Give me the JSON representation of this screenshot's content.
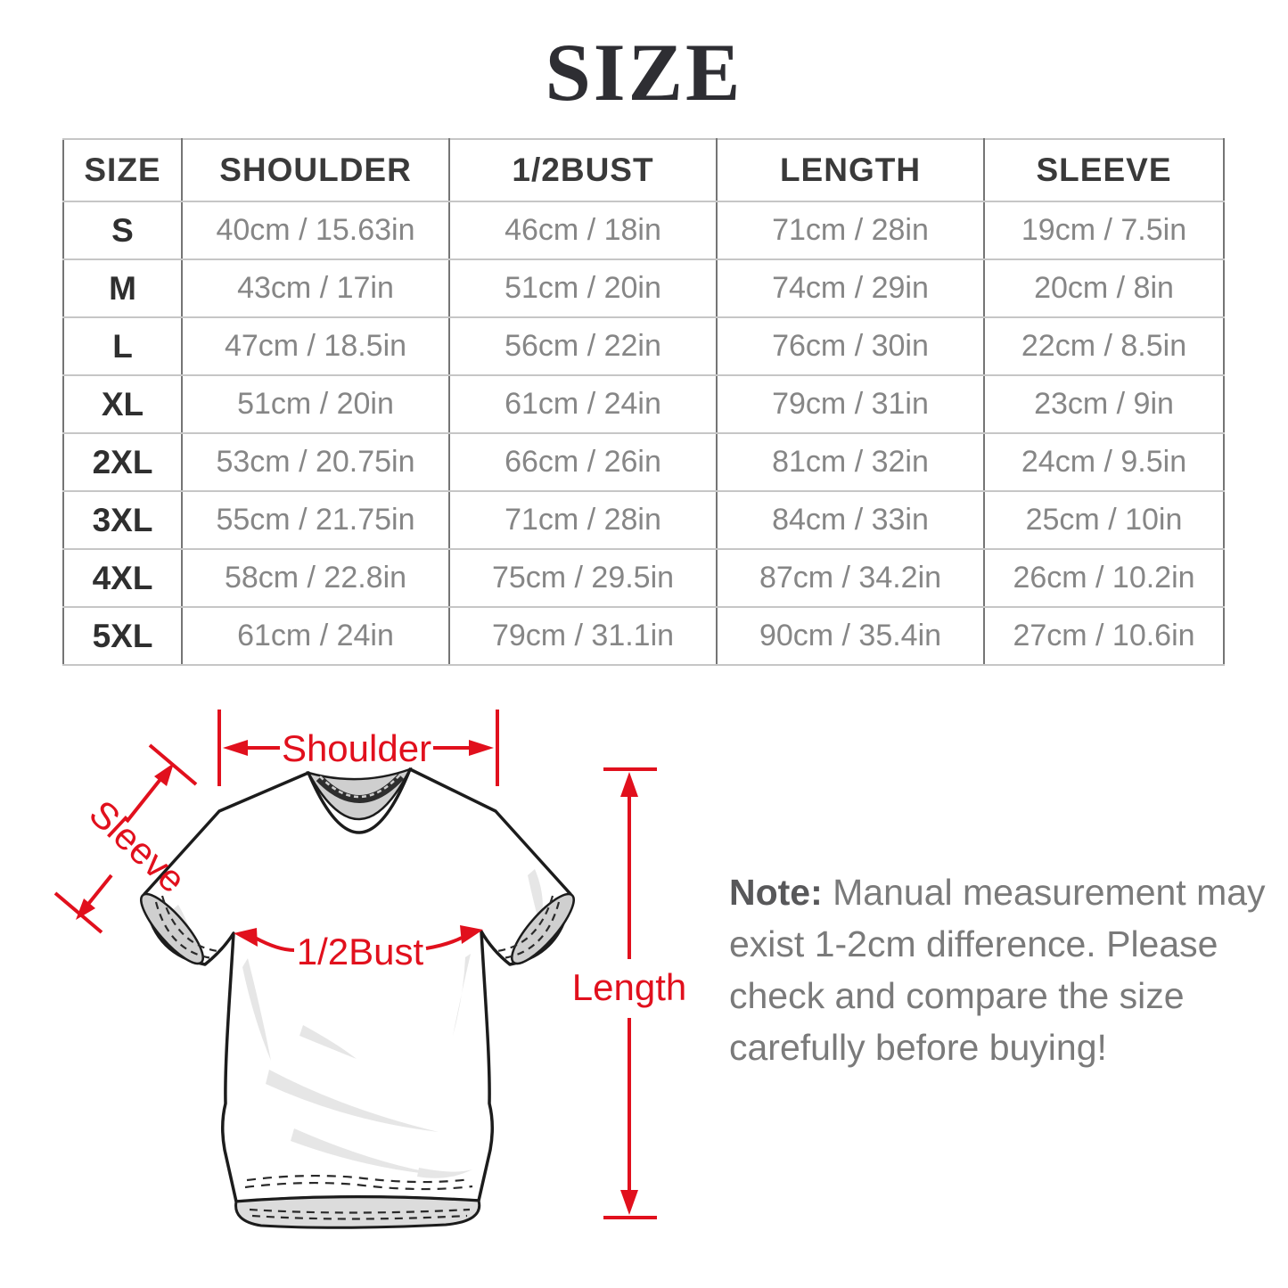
{
  "page": {
    "title": "SIZE"
  },
  "table": {
    "headers": [
      "SIZE",
      "SHOULDER",
      "1/2BUST",
      "LENGTH",
      "SLEEVE"
    ],
    "rows": [
      [
        "S",
        "40cm / 15.63in",
        "46cm / 18in",
        "71cm / 28in",
        "19cm / 7.5in"
      ],
      [
        "M",
        "43cm / 17in",
        "51cm / 20in",
        "74cm / 29in",
        "20cm / 8in"
      ],
      [
        "L",
        "47cm / 18.5in",
        "56cm / 22in",
        "76cm / 30in",
        "22cm / 8.5in"
      ],
      [
        "XL",
        "51cm / 20in",
        "61cm / 24in",
        "79cm / 31in",
        "23cm / 9in"
      ],
      [
        "2XL",
        "53cm / 20.75in",
        "66cm / 26in",
        "81cm / 32in",
        "24cm / 9.5in"
      ],
      [
        "3XL",
        "55cm / 21.75in",
        "71cm / 28in",
        "84cm / 33in",
        "25cm / 10in"
      ],
      [
        "4XL",
        "58cm / 22.8in",
        "75cm / 29.5in",
        "87cm / 34.2in",
        "26cm / 10.2in"
      ],
      [
        "5XL",
        "61cm / 24in",
        "79cm / 31.1in",
        "90cm / 35.4in",
        "27cm / 10.6in"
      ]
    ]
  },
  "diagram": {
    "labels": {
      "shoulder": "Shoulder",
      "sleeve": "Sleeve",
      "bust": "1/2Bust",
      "length": "Length"
    },
    "accent_color": "#e1101d",
    "outline_color": "#1c1c1c"
  },
  "note": {
    "label": "Note:",
    "line1": " Manual measurement may",
    "line2": "exist 1-2cm difference. Please",
    "line3": "check and compare the size",
    "line4": "carefully before buying!"
  }
}
